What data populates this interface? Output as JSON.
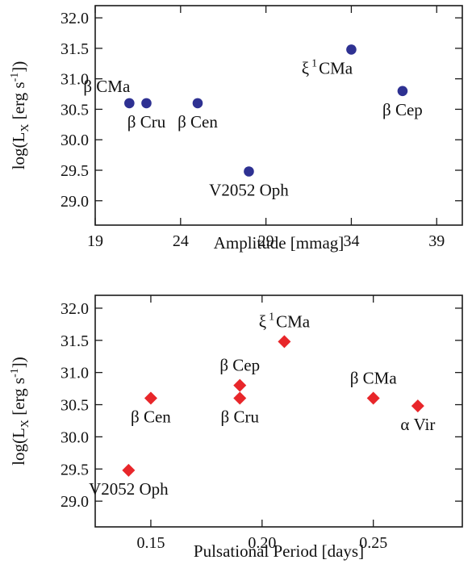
{
  "chart_data": [
    {
      "type": "scatter",
      "marker": "circle",
      "marker_color": "#2e3192",
      "xlabel": "Amplitude [mmag]",
      "ylabel_parts": {
        "pre": "log(L",
        "sub": "X",
        "mid": " [erg s",
        "sup": "-1",
        "post": "])"
      },
      "xlim": [
        19,
        40.5
      ],
      "ylim": [
        28.6,
        32.2
      ],
      "xticks": [
        19,
        24,
        29,
        34,
        39
      ],
      "yticks": [
        29.0,
        29.5,
        30.0,
        30.5,
        31.0,
        31.5,
        32.0
      ],
      "grid": false,
      "points": [
        {
          "x": 21,
          "y": 30.6,
          "label": "β CMa",
          "label_pos": "above-left"
        },
        {
          "x": 22,
          "y": 30.6,
          "label": "β Cru",
          "label_pos": "below"
        },
        {
          "x": 25,
          "y": 30.6,
          "label": "β Cen",
          "label_pos": "below"
        },
        {
          "x": 28,
          "y": 29.48,
          "label": "V2052 Oph",
          "label_pos": "below"
        },
        {
          "x": 34,
          "y": 31.48,
          "label": "ξ",
          "label_sup": "1",
          "label_post": "CMa",
          "label_pos": "below-left"
        },
        {
          "x": 37,
          "y": 30.8,
          "label": "β Cep",
          "label_pos": "below"
        }
      ]
    },
    {
      "type": "scatter",
      "marker": "diamond",
      "marker_color": "#e8262a",
      "xlabel": "Pulsational Period [days]",
      "ylabel_parts": {
        "pre": "log(L",
        "sub": "X",
        "mid": " [erg s",
        "sup": "-1",
        "post": "])"
      },
      "xlim": [
        0.125,
        0.29
      ],
      "ylim": [
        28.6,
        32.2
      ],
      "xticks": [
        0.15,
        0.2,
        0.25
      ],
      "xtick_labels": [
        "0.15",
        "0.20",
        "0.25"
      ],
      "yticks": [
        29.0,
        29.5,
        30.0,
        30.5,
        31.0,
        31.5,
        32.0
      ],
      "grid": false,
      "points": [
        {
          "x": 0.14,
          "y": 29.48,
          "label": "V2052 Oph",
          "label_pos": "below"
        },
        {
          "x": 0.15,
          "y": 30.6,
          "label": "β Cen",
          "label_pos": "below"
        },
        {
          "x": 0.19,
          "y": 30.8,
          "label": "β Cep",
          "label_pos": "above"
        },
        {
          "x": 0.19,
          "y": 30.6,
          "label": "β Cru",
          "label_pos": "below"
        },
        {
          "x": 0.21,
          "y": 31.48,
          "label": "ξ",
          "label_sup": "1",
          "label_post": "CMa",
          "label_pos": "above"
        },
        {
          "x": 0.25,
          "y": 30.6,
          "label": "β CMa",
          "label_pos": "above"
        },
        {
          "x": 0.27,
          "y": 30.48,
          "label": "α Vir",
          "label_pos": "below"
        }
      ]
    }
  ]
}
